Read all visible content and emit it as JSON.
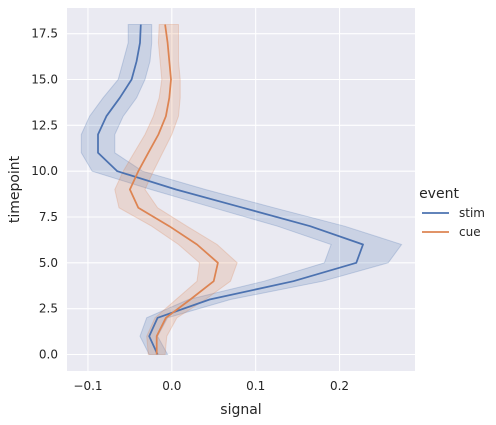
{
  "chart_data": {
    "type": "line",
    "xlabel": "signal",
    "ylabel": "timepoint",
    "xlim": [
      -0.125,
      0.29
    ],
    "ylim": [
      -0.9,
      18.9
    ],
    "xticks": [
      -0.1,
      0.0,
      0.1,
      0.2
    ],
    "xtick_labels": [
      "−0.1",
      "0.0",
      "0.1",
      "0.2"
    ],
    "yticks": [
      0,
      2.5,
      5,
      7.5,
      10,
      12.5,
      15,
      17.5
    ],
    "ytick_labels": [
      "0.0",
      "2.5",
      "5.0",
      "7.5",
      "10.0",
      "12.5",
      "15.0",
      "17.5"
    ],
    "grid": true,
    "legend": {
      "title": "event",
      "position": "right"
    },
    "colors": {
      "background": "#eaeaf2",
      "grid": "#ffffff"
    },
    "series": [
      {
        "name": "stim",
        "color": "#4c72b0",
        "timepoint": [
          0,
          1,
          2,
          3,
          4,
          5,
          6,
          7,
          8,
          9,
          10,
          11,
          12,
          13,
          14,
          15,
          16,
          17,
          18
        ],
        "mean": [
          -0.017,
          -0.027,
          -0.017,
          0.045,
          0.145,
          0.22,
          0.228,
          0.165,
          0.085,
          0.005,
          -0.065,
          -0.088,
          -0.088,
          -0.078,
          -0.062,
          -0.048,
          -0.042,
          -0.038,
          -0.037
        ],
        "lower": [
          -0.027,
          -0.038,
          -0.03,
          0.02,
          0.11,
          0.182,
          0.19,
          0.126,
          0.05,
          -0.025,
          -0.095,
          -0.108,
          -0.108,
          -0.098,
          -0.082,
          -0.064,
          -0.058,
          -0.052,
          -0.052
        ],
        "upper": [
          -0.005,
          -0.017,
          -0.005,
          0.07,
          0.18,
          0.258,
          0.274,
          0.206,
          0.122,
          0.04,
          -0.035,
          -0.068,
          -0.068,
          -0.058,
          -0.042,
          -0.032,
          -0.026,
          -0.024,
          -0.024
        ]
      },
      {
        "name": "cue",
        "color": "#dd8452",
        "timepoint": [
          0,
          1,
          2,
          3,
          4,
          5,
          6,
          7,
          8,
          9,
          10,
          11,
          12,
          13,
          14,
          15,
          16,
          17,
          18
        ],
        "mean": [
          -0.018,
          -0.018,
          -0.007,
          0.022,
          0.05,
          0.055,
          0.03,
          -0.003,
          -0.04,
          -0.05,
          -0.04,
          -0.028,
          -0.016,
          -0.007,
          -0.003,
          -0.001,
          -0.003,
          -0.005,
          -0.008
        ],
        "lower": [
          -0.028,
          -0.03,
          -0.02,
          0.005,
          0.03,
          0.033,
          0.008,
          -0.024,
          -0.063,
          -0.068,
          -0.058,
          -0.045,
          -0.032,
          -0.022,
          -0.015,
          -0.012,
          -0.014,
          -0.016,
          -0.015
        ],
        "upper": [
          -0.008,
          -0.006,
          0.006,
          0.04,
          0.07,
          0.078,
          0.054,
          0.018,
          -0.017,
          -0.032,
          -0.022,
          -0.011,
          0.0,
          0.008,
          0.01,
          0.01,
          0.008,
          0.008,
          0.008
        ]
      }
    ]
  }
}
